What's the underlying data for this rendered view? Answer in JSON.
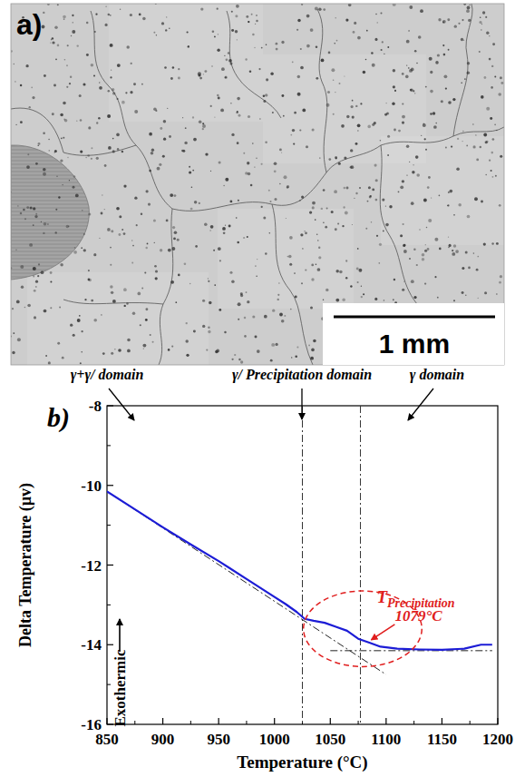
{
  "micrograph": {
    "label": "a)",
    "scale_bar": "1 mm"
  },
  "chart_data": {
    "type": "line",
    "panel_label": "b)",
    "x_label": "Temperature (°C)",
    "y_label": "Delta Temperature (µv)",
    "x": [
      850,
      875,
      900,
      925,
      950,
      975,
      1000,
      1010,
      1020,
      1027,
      1035,
      1045,
      1055,
      1065,
      1075,
      1085,
      1095,
      1110,
      1130,
      1150,
      1170,
      1185,
      1195
    ],
    "series": [
      {
        "color": "#1c1cd6",
        "values": [
          -10.15,
          -10.6,
          -11.05,
          -11.48,
          -11.9,
          -12.35,
          -12.8,
          -12.98,
          -13.18,
          -13.35,
          -13.4,
          -13.45,
          -13.55,
          -13.65,
          -13.85,
          -13.95,
          -14.05,
          -14.1,
          -14.12,
          -14.13,
          -14.1,
          -14.0,
          -14.0
        ]
      }
    ],
    "xlim": [
      850,
      1200
    ],
    "ylim": [
      -16,
      -8
    ],
    "xticks": [
      850,
      900,
      950,
      1000,
      1050,
      1100,
      1150,
      1200
    ],
    "yticks": [
      -16,
      -14,
      -12,
      -10,
      -8
    ],
    "vlines": [
      1025,
      1077
    ],
    "baselines": [
      {
        "x": [
          850,
          1100
        ],
        "y": [
          -10.15,
          -14.75
        ]
      },
      {
        "x": [
          1050,
          1195
        ],
        "y": [
          -14.15,
          -14.15
        ]
      }
    ],
    "domains": [
      "γ+γ/ domain",
      "γ/ Precipitation domain",
      "γ domain"
    ],
    "exothermic": "Exothermic",
    "annotation": {
      "text": "T",
      "subscript": "Precipitation",
      "value_text": "1079°C",
      "xy": [
        1085,
        -13.9
      ],
      "color": "#e01e1e",
      "ellipse": {
        "cx": 1079,
        "cy": -13.6,
        "rx": 53,
        "ry": 0.95
      }
    }
  }
}
